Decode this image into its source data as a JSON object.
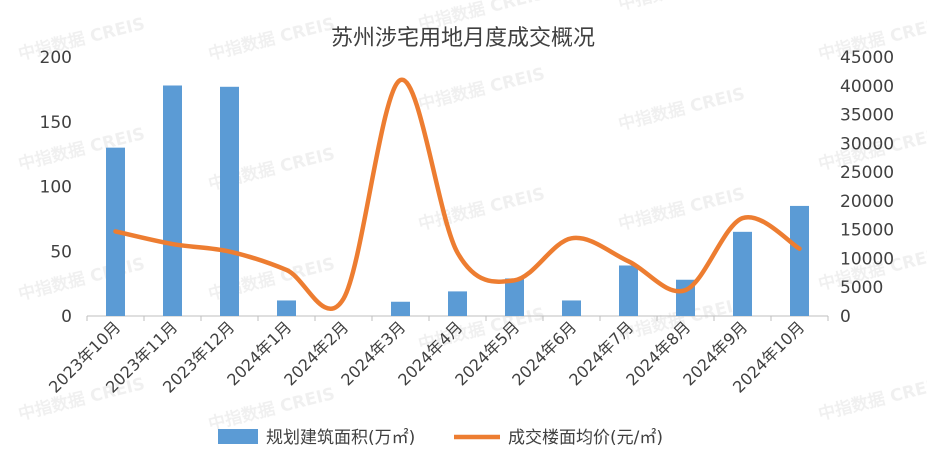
{
  "watermark": "中指数据 CREIS",
  "chart_data": {
    "type": "bar",
    "title": "苏州涉宅用地月度成交概况",
    "categories": [
      "2023年10月",
      "2023年11月",
      "2023年12月",
      "2024年1月",
      "2024年2月",
      "2024年3月",
      "2024年4月",
      "2024年5月",
      "2024年6月",
      "2024年7月",
      "2024年8月",
      "2024年9月",
      "2024年10月"
    ],
    "series": [
      {
        "name": "规划建筑面积(万㎡)",
        "type": "bar",
        "axis": "left",
        "color": "#5B9BD5",
        "values": [
          130,
          178,
          177,
          12,
          0,
          11,
          19,
          29,
          12,
          39,
          28,
          65,
          85
        ]
      },
      {
        "name": "成交楼面均价(元/㎡)",
        "type": "line",
        "axis": "right",
        "color": "#ED7D31",
        "values": [
          14700,
          12500,
          11200,
          8000,
          3000,
          41000,
          11000,
          6200,
          13500,
          9500,
          4500,
          17000,
          11700
        ]
      }
    ],
    "y_left": {
      "min": 0,
      "max": 200,
      "ticks": [
        0,
        50,
        100,
        150,
        200
      ]
    },
    "y_right": {
      "min": 0,
      "max": 45000,
      "ticks": [
        0,
        5000,
        10000,
        15000,
        20000,
        25000,
        30000,
        35000,
        40000,
        45000
      ]
    },
    "grid": false,
    "legend_position": "bottom"
  }
}
